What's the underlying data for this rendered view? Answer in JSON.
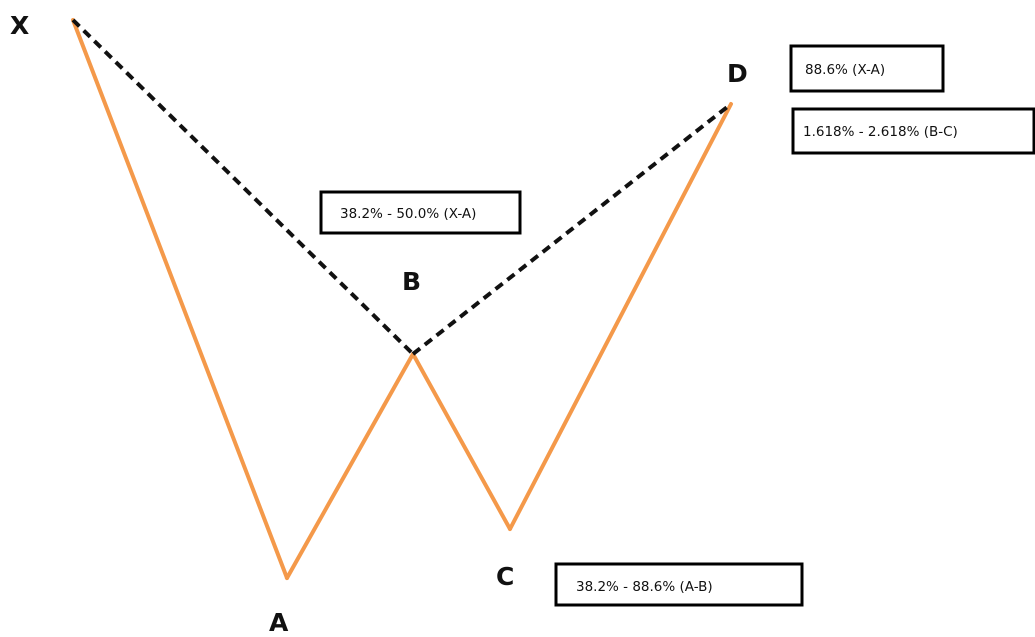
{
  "colors": {
    "leg": "#F4994A",
    "projection": "#111111",
    "box_border": "#000000",
    "background": "#FFFFFF"
  },
  "points": {
    "x": "X",
    "a": "A",
    "b": "B",
    "c": "C",
    "d": "D"
  },
  "ratios": {
    "d_xa": "88.6% (X-A)",
    "d_bc": "1.618% - 2.618% (B-C)",
    "b_xa": "38.2% - 50.0% (X-A)",
    "c_ab": "38.2% - 88.6% (A-B)"
  }
}
